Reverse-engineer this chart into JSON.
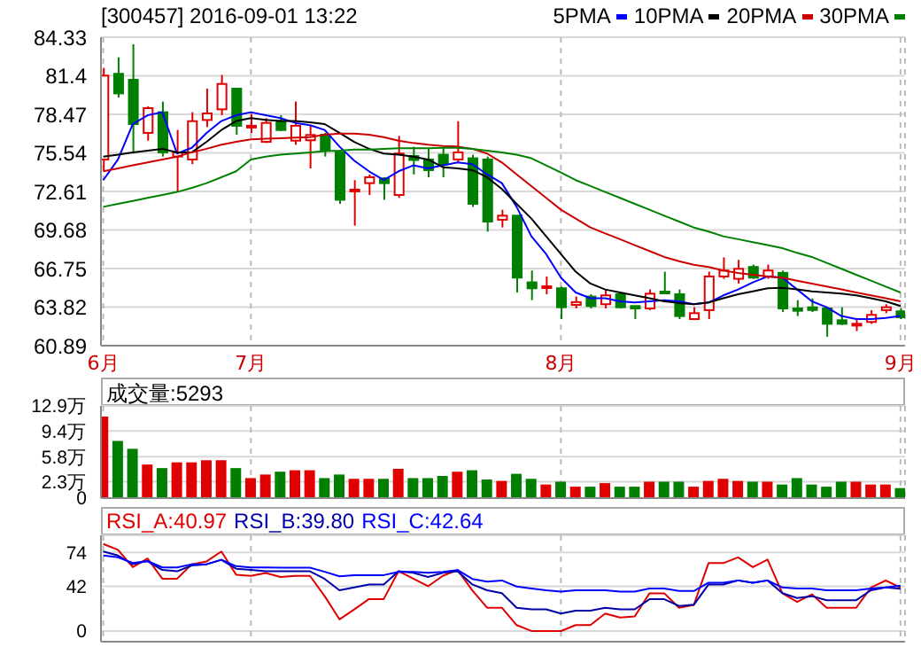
{
  "chart_data": [
    {
      "type": "candlestick",
      "title": "[300457] 2016-09-01 13:22",
      "legend": "top right",
      "grid": true,
      "marker": "none",
      "categories": [
        "6月",
        null,
        null,
        null,
        null,
        null,
        null,
        null,
        null,
        null,
        "7月",
        null,
        null,
        null,
        null,
        null,
        null,
        null,
        null,
        null,
        null,
        null,
        null,
        null,
        null,
        null,
        null,
        null,
        null,
        null,
        null,
        "8月",
        null,
        null,
        null,
        null,
        null,
        null,
        null,
        null,
        null,
        null,
        null,
        null,
        null,
        null,
        null,
        null,
        null,
        null,
        null,
        null,
        null,
        null,
        "9月"
      ],
      "ylim": [
        60.89,
        84.33
      ],
      "yticks": [
        60.89,
        63.82,
        66.75,
        69.68,
        72.61,
        75.54,
        78.47,
        81.4,
        84.33
      ],
      "colors": [
        "#e00000",
        "#007f00",
        "#007f00",
        "#e00000",
        "#007f00",
        "#e00000",
        "#e00000",
        "#e00000",
        "#e00000",
        "#007f00",
        "#e00000",
        "#e00000",
        "#007f00",
        "#e00000",
        "#e00000",
        "#007f00",
        "#007f00",
        "#e00000",
        "#e00000",
        "#007f00",
        "#e00000",
        "#007f00",
        "#007f00",
        "#007f00",
        "#e00000",
        "#007f00",
        "#007f00",
        "#e00000",
        "#007f00",
        "#007f00",
        "#e00000",
        "#007f00",
        "#e00000",
        "#007f00",
        "#e00000",
        "#007f00",
        "#007f00",
        "#e00000",
        "#007f00",
        "#007f00",
        "#e00000",
        "#e00000",
        "#e00000",
        "#e00000",
        "#007f00",
        "#e00000",
        "#007f00",
        "#007f00",
        "#007f00",
        "#007f00",
        "#007f00",
        "#e00000",
        "#e00000",
        "#e00000",
        "#007f00"
      ],
      "ohlc": [
        [
          75.04,
          82.0,
          74.14,
          81.41
        ],
        [
          81.55,
          82.8,
          79.75,
          80.06
        ],
        [
          81.1,
          83.8,
          75.5,
          77.73
        ],
        [
          77.06,
          79.08,
          76.47,
          78.94
        ],
        [
          78.63,
          79.44,
          75.26,
          75.58
        ],
        [
          75.26,
          77.28,
          72.57,
          75.58
        ],
        [
          75.04,
          78.63,
          74.68,
          77.95
        ],
        [
          78.04,
          80.42,
          77.5,
          78.54
        ],
        [
          78.85,
          81.46,
          78.4,
          80.78
        ],
        [
          80.42,
          80.42,
          76.92,
          77.6
        ],
        [
          77.5,
          78.5,
          77.05,
          77.6
        ],
        [
          76.38,
          78.18,
          76.29,
          77.82
        ],
        [
          77.95,
          78.4,
          77.19,
          77.28
        ],
        [
          76.47,
          79.44,
          76.16,
          77.6
        ],
        [
          76.5,
          77.6,
          74.36,
          76.9
        ],
        [
          76.92,
          77.06,
          75.26,
          75.71
        ],
        [
          75.58,
          75.58,
          71.67,
          71.98
        ],
        [
          72.66,
          73.47,
          70.01,
          72.75
        ],
        [
          73.24,
          73.9,
          72.34,
          73.69
        ],
        [
          73.6,
          73.69,
          71.98,
          73.24
        ],
        [
          72.34,
          76.83,
          72.12,
          75.49
        ],
        [
          75.3,
          76.0,
          73.9,
          75.0
        ],
        [
          75.04,
          75.9,
          73.69,
          74.23
        ],
        [
          75.4,
          76.0,
          73.69,
          74.68
        ],
        [
          75.04,
          77.95,
          74.81,
          75.58
        ],
        [
          75.13,
          75.4,
          71.44,
          71.67
        ],
        [
          75.04,
          75.26,
          69.56,
          70.32
        ],
        [
          70.46,
          71.22,
          69.87,
          70.77
        ],
        [
          70.77,
          70.77,
          64.93,
          66.06
        ],
        [
          65.7,
          66.6,
          64.35,
          65.25
        ],
        [
          65.3,
          66.15,
          64.8,
          65.4
        ],
        [
          65.25,
          65.38,
          62.91,
          63.81
        ],
        [
          63.99,
          64.62,
          63.72,
          64.2
        ],
        [
          64.62,
          64.8,
          63.72,
          63.9
        ],
        [
          64.04,
          65.16,
          63.72,
          64.71
        ],
        [
          64.8,
          64.9,
          63.72,
          63.81
        ],
        [
          63.9,
          63.9,
          62.91,
          63.72
        ],
        [
          63.72,
          65.16,
          63.59,
          64.84
        ],
        [
          65.0,
          66.51,
          64.84,
          64.9
        ],
        [
          64.8,
          65.16,
          62.91,
          63.14
        ],
        [
          62.91,
          63.81,
          62.91,
          63.36
        ],
        [
          63.59,
          66.51,
          62.91,
          66.15
        ],
        [
          66.15,
          67.6,
          65.97,
          66.6
        ],
        [
          65.97,
          67.41,
          65.61,
          66.73
        ],
        [
          66.87,
          67.05,
          65.97,
          66.06
        ],
        [
          66.15,
          67.05,
          65.97,
          66.6
        ],
        [
          66.42,
          66.6,
          63.45,
          63.72
        ],
        [
          63.72,
          64.35,
          63.14,
          63.54
        ],
        [
          63.8,
          64.48,
          63.45,
          63.6
        ],
        [
          63.72,
          63.81,
          61.57,
          62.55
        ],
        [
          62.82,
          63.81,
          62.46,
          62.55
        ],
        [
          62.46,
          62.91,
          62.0,
          62.55
        ],
        [
          62.69,
          63.59,
          62.55,
          63.23
        ],
        [
          63.59,
          64.04,
          63.36,
          63.81
        ],
        [
          63.5,
          63.72,
          62.91,
          63.05
        ]
      ],
      "series": [
        {
          "name": "5PMA",
          "type": "line",
          "color": "#0000ff",
          "values": [
            73.47,
            75.04,
            77.73,
            78.4,
            78.63,
            75.49,
            75.93,
            77.06,
            77.96,
            78.4,
            78.63,
            78.4,
            78.18,
            77.82,
            77.64,
            77.28,
            76.02,
            74.95,
            74.14,
            73.47,
            74.14,
            74.59,
            74.36,
            74.59,
            74.81,
            74.68,
            73.91,
            73.24,
            71.44,
            69.2,
            67.85,
            66.06,
            64.93,
            64.49,
            64.49,
            64.26,
            64.17,
            64.26,
            64.35,
            64.26,
            64.04,
            64.17,
            64.71,
            65.16,
            65.7,
            66.15,
            66.06,
            65.16,
            64.26,
            63.81,
            63.14,
            62.91,
            62.91,
            63.0,
            63.14
          ]
        },
        {
          "name": "10PMA",
          "type": "line",
          "color": "#000000",
          "values": [
            75.26,
            75.4,
            75.58,
            75.71,
            75.85,
            75.58,
            75.58,
            76.38,
            77.28,
            77.96,
            78.18,
            78.05,
            77.96,
            77.96,
            77.87,
            77.73,
            77.06,
            76.38,
            75.85,
            75.49,
            75.4,
            75.26,
            75.04,
            74.45,
            74.36,
            74.23,
            73.69,
            72.79,
            71.67,
            70.55,
            69.2,
            67.85,
            66.51,
            65.61,
            65.16,
            64.93,
            64.71,
            64.49,
            64.26,
            64.13,
            64.04,
            64.17,
            64.49,
            64.8,
            65.02,
            65.25,
            65.29,
            65.16,
            65.02,
            64.93,
            64.84,
            64.71,
            64.49,
            64.26,
            63.9
          ]
        },
        {
          "name": "20PMA",
          "type": "line",
          "color": "#cc0000",
          "values": [
            74.14,
            74.36,
            74.59,
            74.81,
            75.04,
            75.26,
            75.58,
            75.85,
            76.16,
            76.38,
            76.56,
            76.61,
            76.65,
            76.7,
            76.74,
            76.92,
            77.01,
            77.01,
            76.92,
            76.74,
            76.47,
            76.29,
            76.16,
            76.07,
            76.02,
            75.85,
            75.49,
            74.81,
            73.91,
            73.02,
            72.12,
            71.22,
            70.55,
            69.87,
            69.42,
            68.98,
            68.53,
            68.08,
            67.63,
            67.31,
            67.04,
            66.87,
            66.6,
            66.42,
            66.28,
            66.15,
            66.06,
            65.83,
            65.61,
            65.38,
            65.16,
            64.93,
            64.71,
            64.49,
            64.26
          ]
        },
        {
          "name": "30PMA",
          "type": "line",
          "color": "#008000",
          "values": [
            71.44,
            71.67,
            71.89,
            72.12,
            72.34,
            72.57,
            72.88,
            73.24,
            73.69,
            74.14,
            75.04,
            75.26,
            75.4,
            75.49,
            75.58,
            75.67,
            75.71,
            75.8,
            75.8,
            75.85,
            75.89,
            75.89,
            75.89,
            75.93,
            75.93,
            75.85,
            75.71,
            75.58,
            75.4,
            75.13,
            74.59,
            74.05,
            73.47,
            73.02,
            72.57,
            72.12,
            71.67,
            71.22,
            70.77,
            70.32,
            69.87,
            69.56,
            69.2,
            68.98,
            68.75,
            68.53,
            68.3,
            67.94,
            67.63,
            67.18,
            66.73,
            66.28,
            65.83,
            65.38,
            64.93
          ]
        }
      ]
    },
    {
      "type": "bar",
      "legend": "top left",
      "grid": true,
      "tick_labels": "y",
      "categories": [
        null,
        null,
        null,
        null,
        null,
        null,
        null,
        null,
        null,
        null,
        null,
        null,
        null,
        null,
        null,
        null,
        null,
        null,
        null,
        null,
        null,
        null,
        null,
        null,
        null,
        null,
        null,
        null,
        null,
        null,
        null,
        null,
        null,
        null,
        null,
        null,
        null,
        null,
        null,
        null,
        null,
        null,
        null,
        null,
        null,
        null,
        null,
        null,
        null,
        null,
        null,
        null,
        null,
        null,
        null
      ],
      "ylim": [
        0,
        12.9
      ],
      "yticks": [
        0,
        {
          "value": 2.3,
          "label": "2.3万"
        },
        {
          "value": 5.8,
          "label": "5.8万"
        },
        {
          "value": 9.4,
          "label": "9.4万"
        },
        {
          "value": 12.9,
          "label": "12.9万"
        }
      ],
      "colors": [
        "#e00000",
        "#007f00",
        "#007f00",
        "#e00000",
        "#007f00",
        "#e00000",
        "#e00000",
        "#e00000",
        "#e00000",
        "#007f00",
        "#e00000",
        "#e00000",
        "#007f00",
        "#e00000",
        "#e00000",
        "#007f00",
        "#007f00",
        "#e00000",
        "#e00000",
        "#007f00",
        "#e00000",
        "#007f00",
        "#007f00",
        "#007f00",
        "#e00000",
        "#007f00",
        "#007f00",
        "#e00000",
        "#007f00",
        "#007f00",
        "#e00000",
        "#007f00",
        "#e00000",
        "#007f00",
        "#e00000",
        "#007f00",
        "#007f00",
        "#e00000",
        "#007f00",
        "#007f00",
        "#e00000",
        "#e00000",
        "#e00000",
        "#e00000",
        "#007f00",
        "#e00000",
        "#007f00",
        "#007f00",
        "#007f00",
        "#007f00",
        "#007f00",
        "#e00000",
        "#e00000",
        "#e00000",
        "#007f00"
      ],
      "series": [
        {
          "name": "成交量:5293",
          "values": [
            11.4,
            8.0,
            6.9,
            4.7,
            4.2,
            5.0,
            5.0,
            5.3,
            5.3,
            4.2,
            2.8,
            3.3,
            3.7,
            3.9,
            3.9,
            2.8,
            3.3,
            2.7,
            2.7,
            2.7,
            4.1,
            2.8,
            2.8,
            3.1,
            3.7,
            3.9,
            2.6,
            2.4,
            3.4,
            2.7,
            1.9,
            2.3,
            1.6,
            1.6,
            2.1,
            1.6,
            1.6,
            2.3,
            2.3,
            2.3,
            1.6,
            2.4,
            2.7,
            2.4,
            2.3,
            2.3,
            1.9,
            2.8,
            1.9,
            1.6,
            2.3,
            2.3,
            1.9,
            1.9,
            1.4
          ]
        }
      ]
    },
    {
      "type": "line",
      "legend": "top left",
      "grid": true,
      "tick_labels": "y",
      "marker": "none",
      "categories": [
        null,
        null,
        null,
        null,
        null,
        null,
        null,
        null,
        null,
        null,
        null,
        null,
        null,
        null,
        null,
        null,
        null,
        null,
        null,
        null,
        null,
        null,
        null,
        null,
        null,
        null,
        null,
        null,
        null,
        null,
        null,
        null,
        null,
        null,
        null,
        null,
        null,
        null,
        null,
        null,
        null,
        null,
        null,
        null,
        null,
        null,
        null,
        null,
        null,
        null,
        null,
        null,
        null,
        null,
        null
      ],
      "ylim": [
        -10,
        90
      ],
      "yticks": [
        0,
        42,
        74
      ],
      "series": [
        {
          "name": "RSI_A:40.97",
          "color": "#e00000",
          "values": [
            81.9,
            76.4,
            60.1,
            68.3,
            49.2,
            49.2,
            62.8,
            65.5,
            74.8,
            53.0,
            51.9,
            54.6,
            50.8,
            51.9,
            51.9,
            32.8,
            11.0,
            20.3,
            30.1,
            30.1,
            56.3,
            49.2,
            42.1,
            51.9,
            57.4,
            38.3,
            21.9,
            21.9,
            5.6,
            0.1,
            0.1,
            0,
            5.6,
            5.6,
            16.5,
            12.7,
            13.8,
            35.5,
            35.5,
            21.9,
            24.6,
            63.9,
            63.9,
            69.3,
            60.1,
            67.2,
            35.5,
            27.4,
            34.5,
            21.9,
            21.9,
            21.9,
            41.0,
            47.5,
            40.97
          ]
        },
        {
          "name": "RSI_B:39.80",
          "color": "#0000aa",
          "values": [
            74.8,
            71.0,
            62.8,
            65.8,
            57.4,
            56.2,
            61.7,
            62.8,
            67.0,
            58.6,
            57.4,
            56.2,
            56.2,
            56.2,
            56.2,
            49.0,
            38.3,
            41.0,
            43.8,
            43.8,
            56.2,
            54.7,
            50.8,
            54.7,
            56.2,
            43.8,
            38.3,
            35.6,
            21.9,
            20.4,
            20.4,
            16.5,
            19.2,
            19.2,
            21.9,
            20.4,
            20.4,
            29.9,
            29.9,
            23.6,
            24.7,
            43.8,
            43.8,
            47.6,
            45.5,
            47.6,
            35.6,
            31.1,
            32.8,
            29.0,
            29.0,
            29.0,
            38.3,
            41.0,
            39.8
          ]
        },
        {
          "name": "RSI_C:42.64",
          "color": "#0000ff",
          "values": [
            71.0,
            69.3,
            64.0,
            65.8,
            59.8,
            59.8,
            62.8,
            62.8,
            67.0,
            61.0,
            59.8,
            59.8,
            59.6,
            59.6,
            59.6,
            55.7,
            51.4,
            52.6,
            52.6,
            52.6,
            55.7,
            55.7,
            54.7,
            55.7,
            57.4,
            49.0,
            46.4,
            47.6,
            41.9,
            40.0,
            38.3,
            37.1,
            38.3,
            38.3,
            38.3,
            37.1,
            37.1,
            40.0,
            40.0,
            37.7,
            37.7,
            45.5,
            45.5,
            47.6,
            45.5,
            47.6,
            41.0,
            40.0,
            40.0,
            38.3,
            38.3,
            38.3,
            40.0,
            41.0,
            42.64
          ]
        }
      ]
    }
  ]
}
